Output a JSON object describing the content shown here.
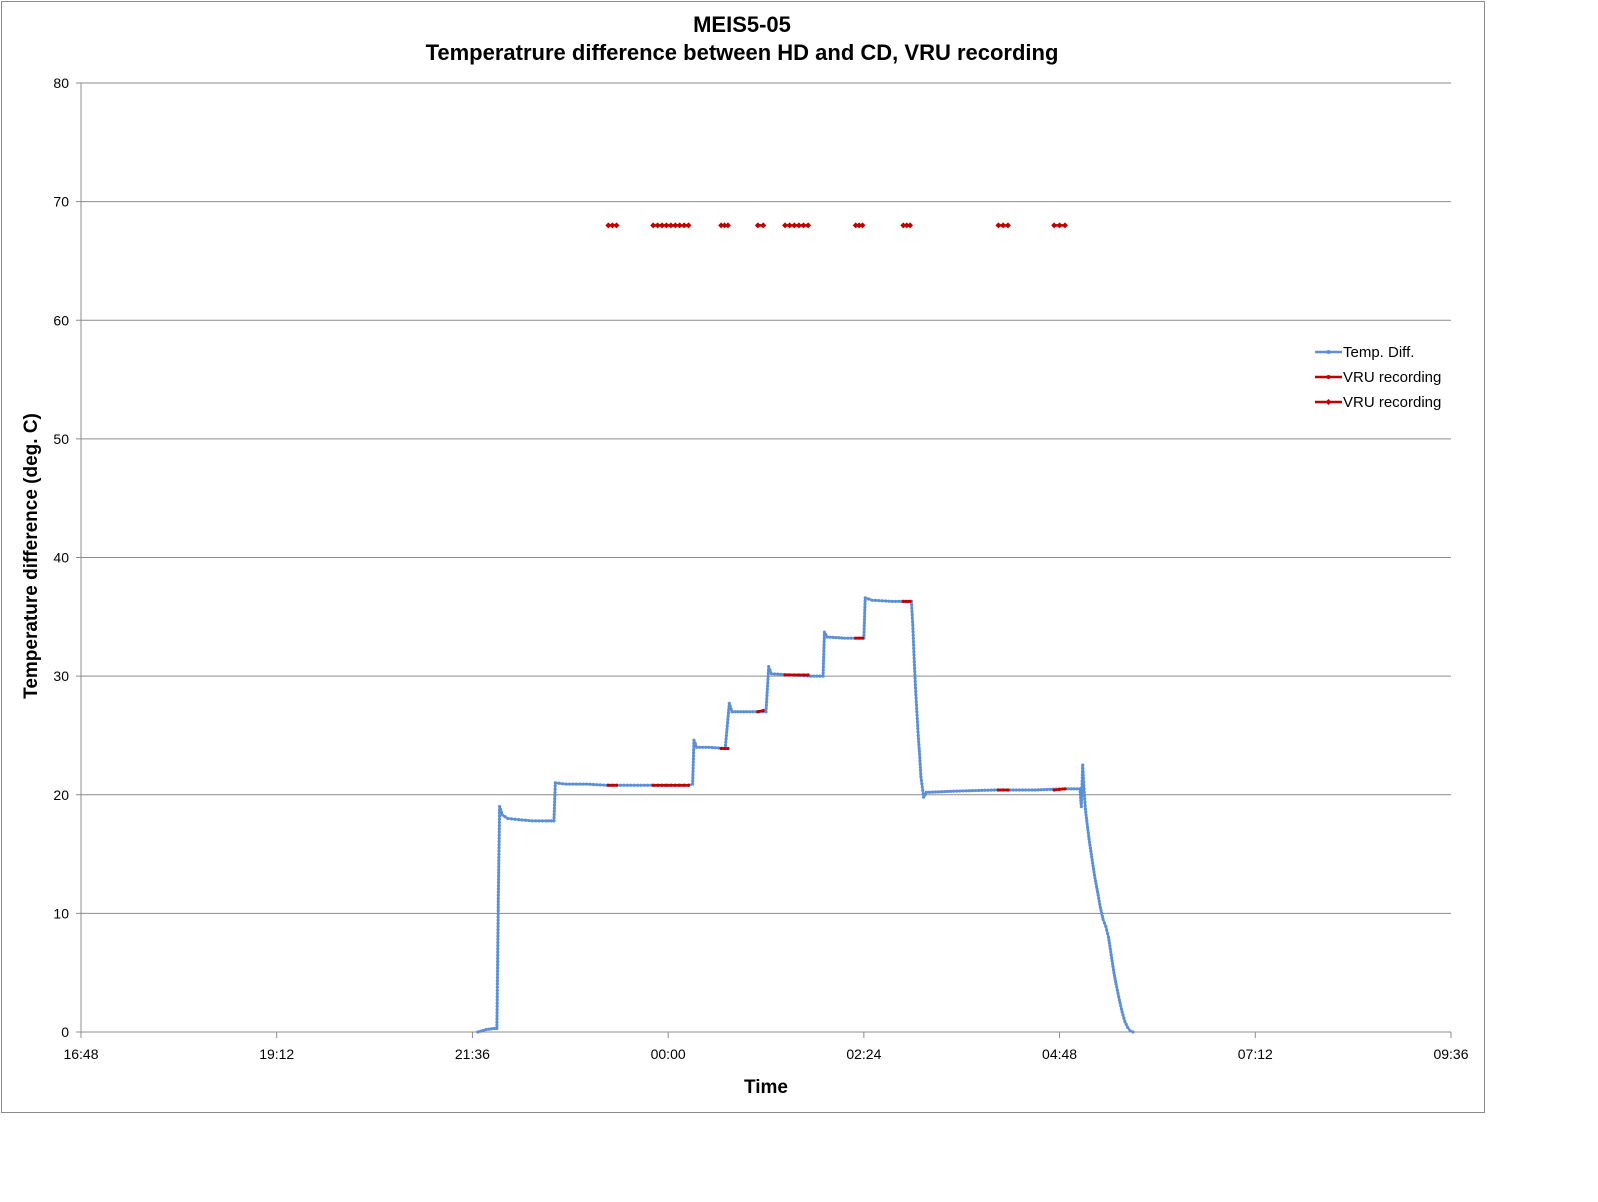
{
  "chart_data": {
    "type": "line",
    "title": "MEIS5-05",
    "subtitle": "Temperatrure difference between HD and CD, VRU recording",
    "xlabel": "Time",
    "ylabel": "Temperature difference (deg. C)",
    "x_axis_kind": "time of day, spanning midnight (hours after 00:00 of the first day)",
    "xlim": [
      "16:48",
      "09:36"
    ],
    "x_tick_labels": [
      "16:48",
      "19:12",
      "21:36",
      "00:00",
      "02:24",
      "04:48",
      "07:12",
      "09:36"
    ],
    "ylim": [
      0,
      80
    ],
    "y_tick_labels": [
      "0",
      "10",
      "20",
      "30",
      "40",
      "50",
      "60",
      "70",
      "80"
    ],
    "grid": "horizontal",
    "legend_position": "right",
    "series": [
      {
        "name": "Temp. Diff.",
        "color": "#5b8fd6",
        "marker": "small-dot",
        "points": [
          [
            "21:40",
            0.0
          ],
          [
            "21:46",
            0.2
          ],
          [
            "21:52",
            0.3
          ],
          [
            "21:54",
            0.3
          ],
          [
            "21:55",
            10.5
          ],
          [
            "21:55",
            11.0
          ],
          [
            "21:56",
            19.0
          ],
          [
            "21:58",
            18.3
          ],
          [
            "22:02",
            18.0
          ],
          [
            "22:10",
            17.9
          ],
          [
            "22:20",
            17.8
          ],
          [
            "22:30",
            17.8
          ],
          [
            "22:36",
            17.8
          ],
          [
            "22:37",
            21.0
          ],
          [
            "22:45",
            20.9
          ],
          [
            "23:00",
            20.9
          ],
          [
            "23:15",
            20.8
          ],
          [
            "23:30",
            20.8
          ],
          [
            "23:45",
            20.8
          ],
          [
            "00:00",
            20.8
          ],
          [
            "00:15",
            20.8
          ],
          [
            "00:18",
            20.9
          ],
          [
            "00:19",
            24.6
          ],
          [
            "00:21",
            24.0
          ],
          [
            "00:30",
            24.0
          ],
          [
            "00:42",
            23.9
          ],
          [
            "00:45",
            27.7
          ],
          [
            "00:47",
            27.0
          ],
          [
            "01:00",
            27.0
          ],
          [
            "01:12",
            27.0
          ],
          [
            "01:14",
            30.8
          ],
          [
            "01:16",
            30.2
          ],
          [
            "01:30",
            30.1
          ],
          [
            "01:45",
            30.0
          ],
          [
            "01:54",
            30.0
          ],
          [
            "01:55",
            33.7
          ],
          [
            "01:57",
            33.3
          ],
          [
            "02:10",
            33.2
          ],
          [
            "02:24",
            33.2
          ],
          [
            "02:25",
            36.6
          ],
          [
            "02:30",
            36.4
          ],
          [
            "02:45",
            36.3
          ],
          [
            "02:59",
            36.3
          ],
          [
            "03:00",
            34.3
          ],
          [
            "03:01",
            31.5
          ],
          [
            "03:02",
            29.0
          ],
          [
            "03:03",
            27.0
          ],
          [
            "03:04",
            25.0
          ],
          [
            "03:05",
            23.4
          ],
          [
            "03:06",
            21.5
          ],
          [
            "03:08",
            19.8
          ],
          [
            "03:10",
            20.2
          ],
          [
            "03:30",
            20.3
          ],
          [
            "04:00",
            20.4
          ],
          [
            "04:30",
            20.4
          ],
          [
            "04:50",
            20.5
          ],
          [
            "05:03",
            20.5
          ],
          [
            "05:04",
            19.0
          ],
          [
            "05:05",
            22.5
          ],
          [
            "05:06",
            20.5
          ],
          [
            "05:07",
            18.8
          ],
          [
            "05:08",
            17.8
          ],
          [
            "05:10",
            16.0
          ],
          [
            "05:12",
            14.5
          ],
          [
            "05:14",
            13.0
          ],
          [
            "05:16",
            11.8
          ],
          [
            "05:18",
            10.5
          ],
          [
            "05:20",
            9.5
          ],
          [
            "05:22",
            8.9
          ],
          [
            "05:24",
            8.0
          ],
          [
            "05:26",
            6.5
          ],
          [
            "05:28",
            5.0
          ],
          [
            "05:30",
            3.8
          ],
          [
            "05:32",
            2.7
          ],
          [
            "05:34",
            1.7
          ],
          [
            "05:36",
            0.9
          ],
          [
            "05:38",
            0.4
          ],
          [
            "05:40",
            0.1
          ],
          [
            "05:42",
            0.0
          ]
        ]
      },
      {
        "name": "VRU recording",
        "color": "#c00000",
        "marker": "small-dot",
        "segments": [
          [
            [
              "23:16",
              20.8
            ],
            [
              "23:22",
              20.8
            ]
          ],
          [
            [
              "23:49",
              20.8
            ],
            [
              "00:15",
              20.8
            ]
          ],
          [
            [
              "00:39",
              23.9
            ],
            [
              "00:44",
              23.9
            ]
          ],
          [
            [
              "01:06",
              27.0
            ],
            [
              "01:10",
              27.1
            ]
          ],
          [
            [
              "01:26",
              30.1
            ],
            [
              "01:43",
              30.1
            ]
          ],
          [
            [
              "02:18",
              33.2
            ],
            [
              "02:23",
              33.2
            ]
          ],
          [
            [
              "02:53",
              36.3
            ],
            [
              "02:58",
              36.3
            ]
          ],
          [
            [
              "04:03",
              20.4
            ],
            [
              "04:10",
              20.4
            ]
          ],
          [
            [
              "04:44",
              20.4
            ],
            [
              "04:52",
              20.5
            ]
          ]
        ]
      },
      {
        "name": "VRU recording",
        "color": "#c00000",
        "marker": "diamond",
        "segments": [
          [
            [
              "23:16",
              68
            ],
            [
              "23:22",
              68
            ]
          ],
          [
            [
              "23:49",
              68
            ],
            [
              "00:15",
              68
            ]
          ],
          [
            [
              "00:39",
              68
            ],
            [
              "00:44",
              68
            ]
          ],
          [
            [
              "01:06",
              68
            ],
            [
              "01:10",
              68
            ]
          ],
          [
            [
              "01:26",
              68
            ],
            [
              "01:43",
              68
            ]
          ],
          [
            [
              "02:18",
              68
            ],
            [
              "02:23",
              68
            ]
          ],
          [
            [
              "02:53",
              68
            ],
            [
              "02:58",
              68
            ]
          ],
          [
            [
              "04:03",
              68
            ],
            [
              "04:10",
              68
            ]
          ],
          [
            [
              "04:44",
              68
            ],
            [
              "04:52",
              68
            ]
          ]
        ]
      }
    ]
  }
}
